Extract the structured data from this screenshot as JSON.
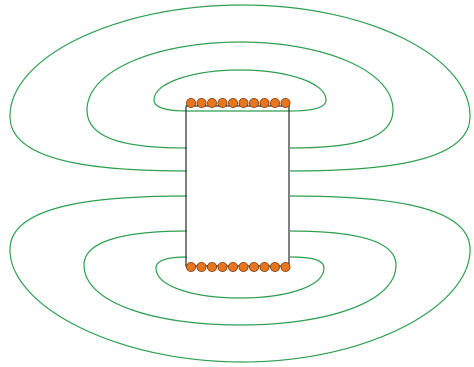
{
  "diagram": {
    "colors": {
      "field_line": "#2e9e4f",
      "conductor_fill": "#e8761e",
      "conductor_stroke": "#7a3a0c",
      "core_outline": "#2a2a2a",
      "background": "#ffffff"
    },
    "top_conductor_count": 10,
    "bottom_conductor_count": 10,
    "field_loops_per_side": 3
  }
}
